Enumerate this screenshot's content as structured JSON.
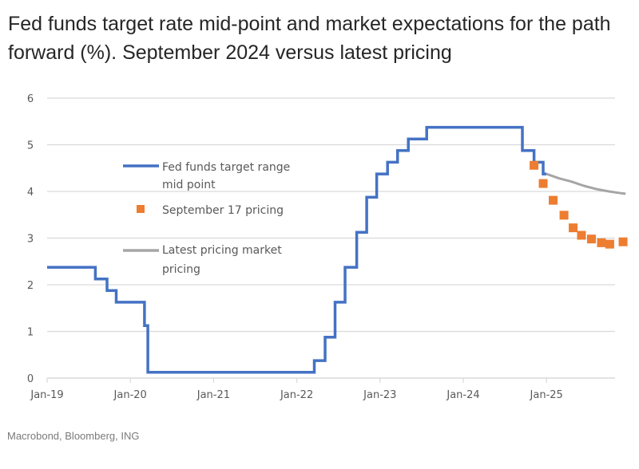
{
  "title": "Fed funds target rate mid-point and market expectations for the path forward (%). September 2024 versus latest pricing",
  "source": "Macrobond, Bloomberg, ING",
  "chart_data": {
    "type": "line",
    "title": "Fed funds target rate mid-point and market expectations for the path forward (%). September 2024 versus latest pricing",
    "xlabel": "",
    "ylabel": "",
    "ylim": [
      0,
      6
    ],
    "xlim": [
      2019.0,
      2026.0
    ],
    "grid": true,
    "legend_position": "center-left",
    "yticks": [
      "0",
      "1",
      "2",
      "3",
      "4",
      "5",
      "6"
    ],
    "xticks": [
      {
        "label": "Jan-19",
        "x": 2019.0
      },
      {
        "label": "Jan-20",
        "x": 2020.0
      },
      {
        "label": "Jan-21",
        "x": 2021.0
      },
      {
        "label": "Jan-22",
        "x": 2022.0
      },
      {
        "label": "Jan-23",
        "x": 2023.0
      },
      {
        "label": "Jan-24",
        "x": 2024.0
      },
      {
        "label": "Jan-25",
        "x": 2025.0
      }
    ],
    "legend": [
      {
        "name": "Fed funds target range mid point",
        "label_lines": [
          "Fed funds target range",
          "mid point"
        ],
        "style": "line",
        "color": "#4472C4"
      },
      {
        "name": "September 17 pricing",
        "label_lines": [
          "September 17 pricing"
        ],
        "style": "square-marker",
        "color": "#ED7D31"
      },
      {
        "name": "Latest pricing market pricing",
        "label_lines": [
          "Latest pricing market",
          "pricing"
        ],
        "style": "line",
        "color": "#A5A5A5"
      }
    ],
    "series": [
      {
        "name": "Fed funds target range mid point",
        "type": "step",
        "color": "#4472C4",
        "points": [
          [
            2019.0,
            2.375
          ],
          [
            2019.58,
            2.375
          ],
          [
            2019.58,
            2.125
          ],
          [
            2019.72,
            2.125
          ],
          [
            2019.72,
            1.875
          ],
          [
            2019.83,
            1.875
          ],
          [
            2019.83,
            1.625
          ],
          [
            2020.17,
            1.625
          ],
          [
            2020.17,
            1.125
          ],
          [
            2020.21,
            1.125
          ],
          [
            2020.21,
            0.125
          ],
          [
            2022.21,
            0.125
          ],
          [
            2022.21,
            0.375
          ],
          [
            2022.34,
            0.375
          ],
          [
            2022.34,
            0.875
          ],
          [
            2022.46,
            0.875
          ],
          [
            2022.46,
            1.625
          ],
          [
            2022.58,
            1.625
          ],
          [
            2022.58,
            2.375
          ],
          [
            2022.72,
            2.375
          ],
          [
            2022.72,
            3.125
          ],
          [
            2022.84,
            3.125
          ],
          [
            2022.84,
            3.875
          ],
          [
            2022.96,
            3.875
          ],
          [
            2022.96,
            4.375
          ],
          [
            2023.09,
            4.375
          ],
          [
            2023.09,
            4.625
          ],
          [
            2023.21,
            4.625
          ],
          [
            2023.21,
            4.875
          ],
          [
            2023.34,
            4.875
          ],
          [
            2023.34,
            5.125
          ],
          [
            2023.56,
            5.125
          ],
          [
            2023.56,
            5.375
          ],
          [
            2024.71,
            5.375
          ],
          [
            2024.71,
            4.875
          ],
          [
            2024.85,
            4.875
          ],
          [
            2024.85,
            4.625
          ],
          [
            2024.96,
            4.625
          ],
          [
            2024.96,
            4.375
          ],
          [
            2025.0,
            4.375
          ]
        ]
      },
      {
        "name": "September 17 pricing",
        "type": "scatter",
        "color": "#ED7D31",
        "points": [
          [
            2024.85,
            4.56
          ],
          [
            2024.96,
            4.17
          ],
          [
            2025.08,
            3.81
          ],
          [
            2025.21,
            3.49
          ],
          [
            2025.32,
            3.22
          ],
          [
            2025.42,
            3.06
          ],
          [
            2025.54,
            2.98
          ],
          [
            2025.66,
            2.9
          ],
          [
            2025.76,
            2.87
          ],
          [
            2025.92,
            2.92
          ]
        ]
      },
      {
        "name": "Latest pricing market pricing",
        "type": "line",
        "color": "#A5A5A5",
        "points": [
          [
            2025.0,
            4.375
          ],
          [
            2025.15,
            4.28
          ],
          [
            2025.3,
            4.21
          ],
          [
            2025.45,
            4.12
          ],
          [
            2025.6,
            4.05
          ],
          [
            2025.75,
            4.0
          ],
          [
            2025.9,
            3.96
          ],
          [
            2025.95,
            3.95
          ]
        ]
      }
    ]
  }
}
